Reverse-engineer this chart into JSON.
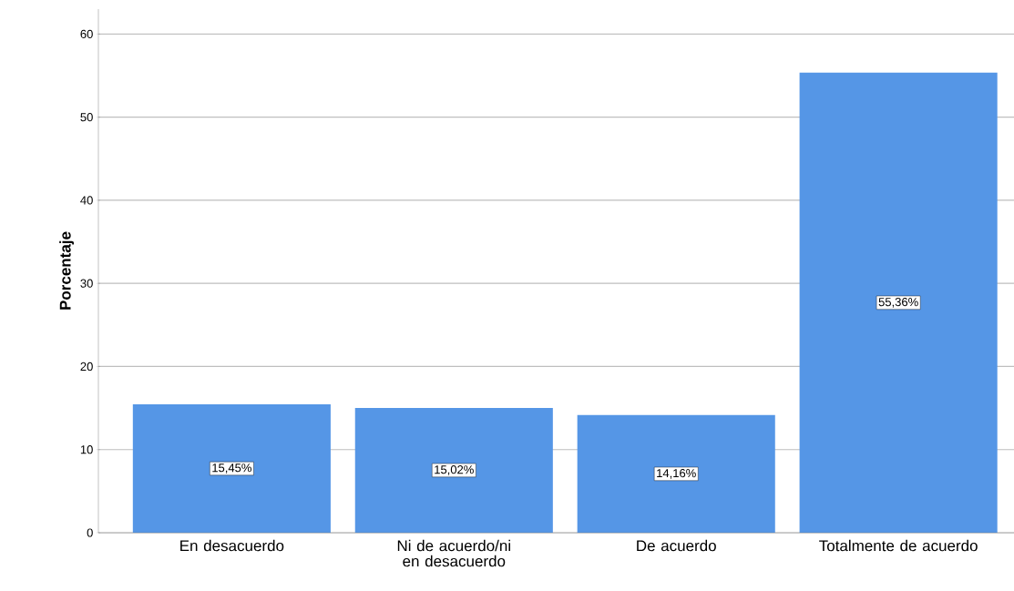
{
  "chart_data": {
    "type": "bar",
    "ylabel": "Porcentaje",
    "categories": [
      "En desacuerdo",
      "Ni de acuerdo/ni en desacuerdo",
      "De acuerdo",
      "Totalmente de acuerdo"
    ],
    "values": [
      15.45,
      15.02,
      14.16,
      55.36
    ],
    "value_labels": [
      "15,45%",
      "15,02%",
      "14,16%",
      "55,36%"
    ],
    "color": "#5596e6",
    "ylim": [
      0,
      63
    ],
    "yticks": [
      0,
      10,
      20,
      30,
      40,
      50,
      60
    ],
    "grid": "y"
  }
}
